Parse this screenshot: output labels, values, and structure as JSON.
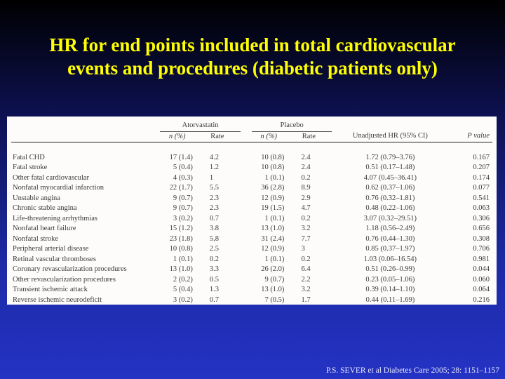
{
  "title": {
    "line1": "HR for end points included in total cardiovascular",
    "line2": "events and procedures  (diabetic patients only)"
  },
  "table": {
    "group_headers": {
      "atorvastatin": "Atorvastatin",
      "placebo": "Placebo"
    },
    "column_headers": {
      "a_n": "n (%)",
      "a_rate": "Rate",
      "p_n": "n (%)",
      "p_rate": "Rate",
      "hr": "Unadjusted HR (95% CI)",
      "p": "P value"
    },
    "rows": [
      {
        "endpoint": "Fatal CHD",
        "a_n": "17 (1.4)",
        "a_rate": "4.2",
        "p_n": "10 (0.8)",
        "p_rate": "2.4",
        "hr": "1.72 (0.79–3.76)",
        "p": "0.167"
      },
      {
        "endpoint": "Fatal stroke",
        "a_n": "5 (0.4)",
        "a_rate": "1.2",
        "p_n": "10 (0.8)",
        "p_rate": "2.4",
        "hr": "0.51 (0.17–1.48)",
        "p": "0.207"
      },
      {
        "endpoint": "Other fatal cardiovascular",
        "a_n": "4 (0.3)",
        "a_rate": "1",
        "p_n": "1 (0.1)",
        "p_rate": "0.2",
        "hr": "4.07 (0.45–36.41)",
        "p": "0.174"
      },
      {
        "endpoint": "Nonfatal myocardial infarction",
        "a_n": "22 (1.7)",
        "a_rate": "5.5",
        "p_n": "36 (2.8)",
        "p_rate": "8.9",
        "hr": "0.62 (0.37–1.06)",
        "p": "0.077"
      },
      {
        "endpoint": "Unstable angina",
        "a_n": "9 (0.7)",
        "a_rate": "2.3",
        "p_n": "12 (0.9)",
        "p_rate": "2.9",
        "hr": "0.76 (0.32–1.81)",
        "p": "0.541"
      },
      {
        "endpoint": "Chronic stable angina",
        "a_n": "9 (0.7)",
        "a_rate": "2.3",
        "p_n": "19 (1.5)",
        "p_rate": "4.7",
        "hr": "0.48 (0.22–1.06)",
        "p": "0.063"
      },
      {
        "endpoint": "Life-threatening arrhythmias",
        "a_n": "3 (0.2)",
        "a_rate": "0.7",
        "p_n": "1 (0.1)",
        "p_rate": "0.2",
        "hr": "3.07 (0.32–29.51)",
        "p": "0.306"
      },
      {
        "endpoint": "Nonfatal heart failure",
        "a_n": "15 (1.2)",
        "a_rate": "3.8",
        "p_n": "13 (1.0)",
        "p_rate": "3.2",
        "hr": "1.18 (0.56–2.49)",
        "p": "0.656"
      },
      {
        "endpoint": "Nonfatal stroke",
        "a_n": "23 (1.8)",
        "a_rate": "5.8",
        "p_n": "31 (2.4)",
        "p_rate": "7.7",
        "hr": "0.76 (0.44–1.30)",
        "p": "0.308"
      },
      {
        "endpoint": "Peripheral arterial disease",
        "a_n": "10 (0.8)",
        "a_rate": "2.5",
        "p_n": "12 (0.9)",
        "p_rate": "3",
        "hr": "0.85 (0.37–1.97)",
        "p": "0.706"
      },
      {
        "endpoint": "Retinal vascular thromboses",
        "a_n": "1 (0.1)",
        "a_rate": "0.2",
        "p_n": "1 (0.1)",
        "p_rate": "0.2",
        "hr": "1.03 (0.06–16.54)",
        "p": "0.981"
      },
      {
        "endpoint": "Coronary revascularization procedures",
        "a_n": "13 (1.0)",
        "a_rate": "3.3",
        "p_n": "26 (2.0)",
        "p_rate": "6.4",
        "hr": "0.51 (0.26–0.99)",
        "p": "0.044"
      },
      {
        "endpoint": "Other revascularization procedures",
        "a_n": "2 (0.2)",
        "a_rate": "0.5",
        "p_n": "9 (0.7)",
        "p_rate": "2.2",
        "hr": "0.23 (0.05–1.06)",
        "p": "0.060"
      },
      {
        "endpoint": "Transient ischemic attack",
        "a_n": "5 (0.4)",
        "a_rate": "1.3",
        "p_n": "13 (1.0)",
        "p_rate": "3.2",
        "hr": "0.39 (0.14–1.10)",
        "p": "0.064"
      },
      {
        "endpoint": "Reverse ischemic neurodeficit",
        "a_n": "3 (0.2)",
        "a_rate": "0.7",
        "p_n": "7 (0.5)",
        "p_rate": "1.7",
        "hr": "0.44 (0.11–1.69)",
        "p": "0.216"
      }
    ]
  },
  "citation": "P.S. SEVER et al Diabetes Care 2005; 28: 1151–1157",
  "colors": {
    "title": "#ffff00",
    "background_top": "#000000",
    "background_bottom": "#2433c4",
    "table_bg": "#fdfcfb"
  }
}
